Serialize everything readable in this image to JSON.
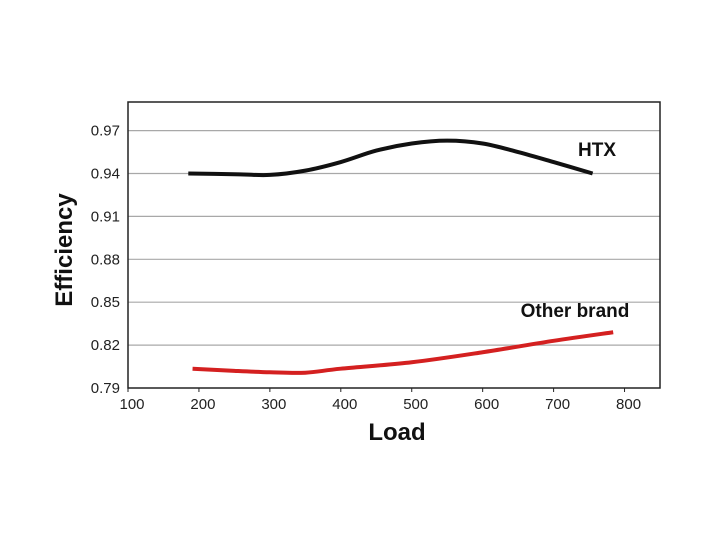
{
  "chart_data": {
    "type": "line",
    "title": "",
    "xlabel": "Load",
    "ylabel": "Efficiency",
    "xlim": [
      100,
      850
    ],
    "ylim": [
      0.79,
      0.99
    ],
    "xticks": [
      "100",
      "200",
      "300",
      "400",
      "500",
      "600",
      "700",
      "800"
    ],
    "yticks": [
      "0.97",
      "0.94",
      "0.91",
      "0.88",
      "0.85",
      "0.82",
      "0.79"
    ],
    "grid": "horizontal",
    "series": [
      {
        "name": "HTX",
        "color": "#111111",
        "x": [
          185,
          250,
          300,
          350,
          400,
          450,
          500,
          550,
          600,
          650,
          700,
          755
        ],
        "y": [
          0.94,
          0.9395,
          0.939,
          0.942,
          0.948,
          0.956,
          0.961,
          0.963,
          0.961,
          0.955,
          0.948,
          0.94
        ]
      },
      {
        "name": "Other brand",
        "color": "#d42020",
        "x": [
          191,
          250,
          300,
          350,
          400,
          500,
          600,
          700,
          784
        ],
        "y": [
          0.8035,
          0.802,
          0.801,
          0.8007,
          0.8035,
          0.808,
          0.815,
          0.823,
          0.829
        ]
      }
    ]
  }
}
